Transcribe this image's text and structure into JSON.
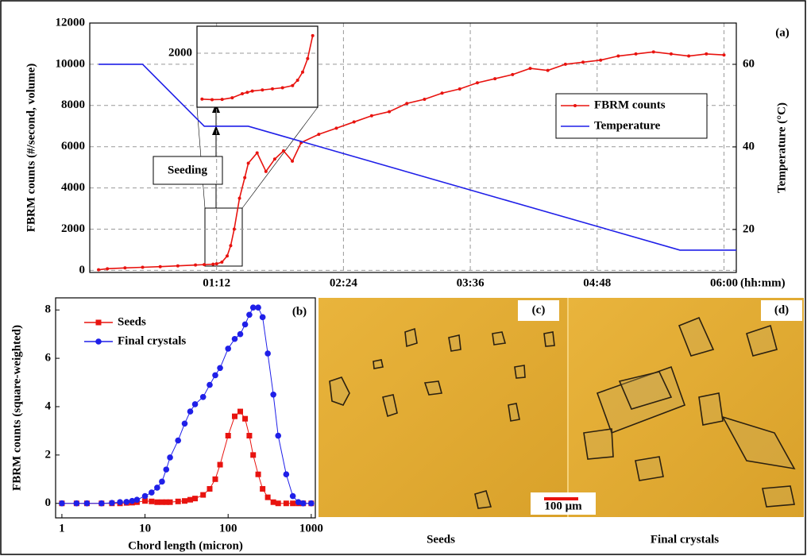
{
  "chart_data": [
    {
      "type": "line",
      "label": "(a)",
      "y_label": "FBRM counts (#/second, volume)",
      "y2_label": "Temperature (°C)",
      "x_label": "(hh:mm)",
      "annotations": [
        "Seeding"
      ],
      "xlim": [
        0,
        367
      ],
      "xticks": [
        {
          "value": 72,
          "label": "01:12"
        },
        {
          "value": 144,
          "label": "02:24"
        },
        {
          "value": 216,
          "label": "03:36"
        },
        {
          "value": 288,
          "label": "04:48"
        },
        {
          "value": 360,
          "label": "06:00"
        }
      ],
      "ylim": [
        -100,
        12000
      ],
      "yticks": [
        0,
        2000,
        4000,
        6000,
        8000,
        10000,
        12000
      ],
      "y2lim": [
        9.6,
        70
      ],
      "y2ticks": [
        20,
        40,
        60
      ],
      "grid": true,
      "legend": "right",
      "series": [
        {
          "name": "FBRM counts",
          "color": "#e8130f",
          "x": [
            5,
            10,
            20,
            30,
            40,
            50,
            60,
            65,
            70,
            72,
            75,
            78,
            80,
            82,
            85,
            88,
            90,
            95,
            100,
            105,
            110,
            115,
            120,
            130,
            140,
            150,
            160,
            170,
            180,
            190,
            200,
            210,
            220,
            230,
            240,
            250,
            260,
            270,
            280,
            290,
            300,
            310,
            320,
            330,
            340,
            350,
            360
          ],
          "values": [
            30,
            80,
            120,
            150,
            180,
            220,
            260,
            280,
            300,
            320,
            400,
            700,
            1200,
            2000,
            3500,
            4500,
            5200,
            5700,
            4800,
            5400,
            5800,
            5300,
            6200,
            6600,
            6900,
            7200,
            7500,
            7700,
            8100,
            8300,
            8600,
            8800,
            9100,
            9300,
            9500,
            9800,
            9700,
            10000,
            10100,
            10200,
            10400,
            10500,
            10600,
            10500,
            10400,
            10500,
            10450
          ]
        },
        {
          "name": "Temperature",
          "color": "#1f1fe8",
          "axis": "y2",
          "x": [
            5,
            30,
            65,
            90,
            335,
            367
          ],
          "values": [
            60,
            60,
            45,
            45,
            15,
            15
          ]
        }
      ]
    },
    {
      "type": "line",
      "xlim": [
        59,
        83
      ],
      "ylim": [
        0,
        3000
      ],
      "yticks": [
        2000
      ],
      "x": [
        60,
        62,
        64,
        66,
        68,
        69,
        70,
        72,
        74,
        76,
        78,
        79,
        80,
        81,
        82
      ],
      "values": [
        300,
        280,
        290,
        350,
        500,
        550,
        600,
        640,
        680,
        720,
        800,
        1000,
        1300,
        1800,
        2650
      ],
      "color": "#e8130f"
    },
    {
      "type": "line",
      "label": "(b)",
      "xscale": "log",
      "y_label": "FBRM counts (square-weighted)",
      "x_label": "Chord length (micron)",
      "xlim": [
        0.84,
        1120
      ],
      "xticks": [
        1,
        10,
        100,
        1000
      ],
      "ylim": [
        -0.6,
        8.5
      ],
      "yticks": [
        0,
        2,
        4,
        6,
        8
      ],
      "legend": "upper left",
      "x": [
        1,
        1.5,
        2,
        3,
        4,
        5,
        6,
        7,
        8,
        10,
        12,
        14,
        16,
        18,
        20,
        25,
        30,
        35,
        40,
        50,
        60,
        70,
        80,
        100,
        120,
        140,
        160,
        180,
        200,
        230,
        260,
        300,
        350,
        400,
        500,
        600,
        700,
        800,
        1000
      ],
      "series": [
        {
          "name": "Seeds",
          "color": "#e8130f",
          "marker": "square",
          "values": [
            0,
            0,
            0,
            0,
            0,
            0,
            0.02,
            0.03,
            0.05,
            0.1,
            0.08,
            0.05,
            0.05,
            0.05,
            0.05,
            0.08,
            0.1,
            0.15,
            0.2,
            0.35,
            0.6,
            1.0,
            1.6,
            2.8,
            3.6,
            3.8,
            3.5,
            2.8,
            2.0,
            1.2,
            0.6,
            0.25,
            0.05,
            0,
            0,
            0,
            0,
            0,
            0
          ]
        },
        {
          "name": "Final crystals",
          "color": "#1f1fe8",
          "marker": "circle",
          "values": [
            0,
            0,
            0,
            0,
            0.02,
            0.05,
            0.06,
            0.1,
            0.15,
            0.3,
            0.45,
            0.65,
            0.9,
            1.4,
            1.9,
            2.6,
            3.3,
            3.8,
            4.1,
            4.4,
            4.9,
            5.3,
            5.6,
            6.4,
            6.8,
            7.0,
            7.4,
            7.8,
            8.1,
            8.1,
            7.7,
            6.2,
            4.5,
            2.8,
            1.2,
            0.3,
            0.05,
            0,
            0
          ]
        }
      ]
    }
  ],
  "micrographs": {
    "panels": [
      {
        "label": "(c)",
        "caption": "Seeds"
      },
      {
        "label": "(d)",
        "caption": "Final crystals"
      }
    ],
    "scale_bar": "100 μm"
  }
}
